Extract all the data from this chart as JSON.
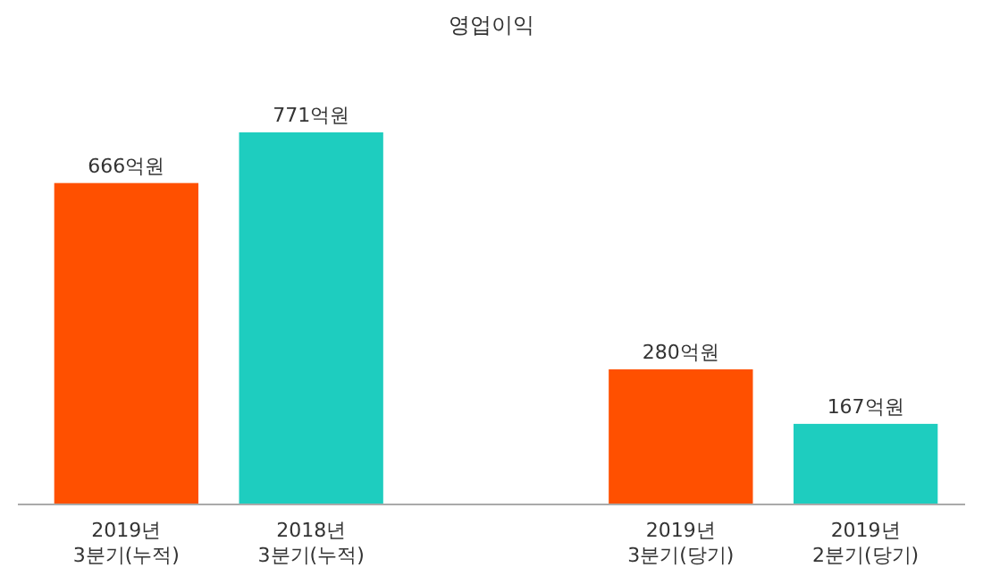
{
  "chart_data": {
    "type": "bar",
    "title": "영업이익",
    "categories": [
      "2019년 3분기(누적)",
      "2018년 3분기(누적)",
      null,
      "2019년 3분기(당기)",
      "2019년 2분기(당기)"
    ],
    "values": [
      666,
      771,
      null,
      280,
      167
    ],
    "colors": [
      "#ff5000",
      "#1ecdbf",
      null,
      "#ff5000",
      "#1ecdbf"
    ],
    "value_labels": [
      "666억원",
      "771억원",
      null,
      "280억원",
      "167억원"
    ]
  }
}
